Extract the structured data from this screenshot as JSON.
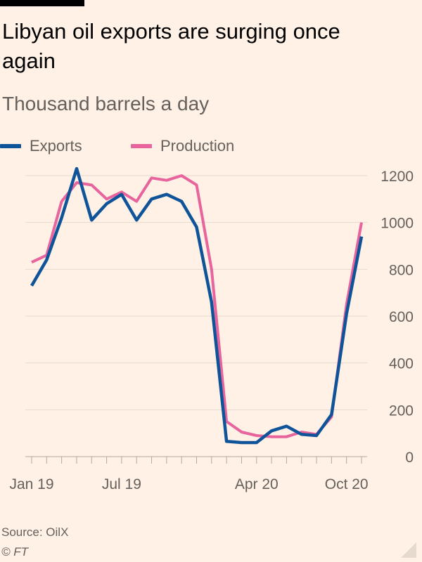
{
  "title": "Libyan oil exports are surging once again",
  "subtitle": "Thousand barrels a day",
  "source": "Source: OilX",
  "copyright": "© FT",
  "colors": {
    "background": "#fff1e5",
    "exports": "#0f5499",
    "production": "#e8649d",
    "grid": "#e6d9ce",
    "axis_text": "#66605c"
  },
  "chart_data": {
    "type": "line",
    "xlabel": "",
    "ylabel": "",
    "ylim": [
      0,
      1200
    ],
    "y_ticks": [
      "0",
      "200",
      "400",
      "600",
      "800",
      "1000",
      "1200"
    ],
    "y_axis_side": "right",
    "x_tick_labels": [
      "Jan 19",
      "Jul 19",
      "Apr 20",
      "Oct 20"
    ],
    "x": [
      "2019-01",
      "2019-02",
      "2019-03",
      "2019-04",
      "2019-05",
      "2019-06",
      "2019-07",
      "2019-08",
      "2019-09",
      "2019-10",
      "2019-11",
      "2019-12",
      "2020-01",
      "2020-02",
      "2020-03",
      "2020-04",
      "2020-05",
      "2020-06",
      "2020-07",
      "2020-08",
      "2020-09",
      "2020-10",
      "2020-11"
    ],
    "legend": "top-left",
    "grid": true,
    "series": [
      {
        "name": "Exports",
        "color": "#0f5499",
        "values": [
          730,
          840,
          1020,
          1230,
          1010,
          1080,
          1120,
          1010,
          1100,
          1120,
          1090,
          980,
          660,
          65,
          60,
          60,
          110,
          130,
          95,
          90,
          180,
          610,
          940
        ]
      },
      {
        "name": "Production",
        "color": "#e8649d",
        "values": [
          830,
          860,
          1090,
          1170,
          1160,
          1100,
          1130,
          1090,
          1190,
          1180,
          1200,
          1160,
          800,
          150,
          105,
          90,
          85,
          85,
          105,
          95,
          170,
          650,
          1000
        ]
      }
    ]
  }
}
